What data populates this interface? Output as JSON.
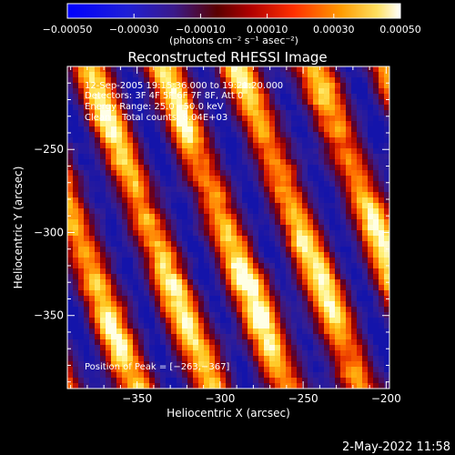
{
  "chart_data": {
    "type": "heatmap",
    "title": "Reconstructed RHESSI Image",
    "xlabel": "Heliocentric X (arcsec)",
    "ylabel": "Heliocentric Y (arcsec)",
    "xlim": [
      -392,
      -198
    ],
    "ylim": [
      -394,
      -200
    ],
    "x_ticks": [
      -350,
      -300,
      -250,
      -200
    ],
    "y_ticks": [
      -250,
      -300,
      -350
    ],
    "x_tick_labels": [
      "−350",
      "−300",
      "−250",
      "−200"
    ],
    "y_tick_labels": [
      "−250",
      "−300",
      "−350"
    ],
    "colorbar": {
      "vmin": -0.0005,
      "vmax": 0.0005,
      "tick_values": [
        -0.0005,
        -0.0003,
        -0.0001,
        0.0001,
        0.0003,
        0.0005
      ],
      "tick_labels": [
        "−0.00050",
        "−0.00030",
        "−0.00010",
        "0.00010",
        "0.00030",
        "0.00050"
      ],
      "units_label": "(photons cm⁻² s⁻¹ asec⁻²)"
    },
    "info": {
      "time": "12-Sep-2005 19:15:36.000 to 19:21:20.000",
      "detectors": "Detectors: 3F 4F 5F 6F 7F 8F, Att 0",
      "energy": "Energy Range: 25.0 - 50.0 keV",
      "clean": "Clean    Total counts: 8.04E+03"
    },
    "peak_label": "Position of Peak = [−263,−367]",
    "peak_position": [
      -263,
      -367
    ],
    "grid": false,
    "colormap": "rainbow-ish (blue-purple-red-orange-yellow-white)",
    "ridges_note": "diagonal bright streaks running from upper-left to lower-right"
  },
  "footer": {
    "date": "2-May-2022 11:58"
  },
  "colors": {
    "background": "#000000",
    "axis": "#ffffff",
    "text": "#ffffff"
  }
}
